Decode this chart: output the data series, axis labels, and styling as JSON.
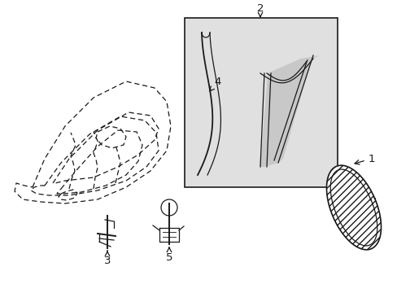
{
  "bg_color": "#ffffff",
  "line_color": "#1a1a1a",
  "box_fill": "#e0e0e0",
  "lw": 0.9,
  "fig_w": 4.89,
  "fig_h": 3.6,
  "dpi": 100
}
